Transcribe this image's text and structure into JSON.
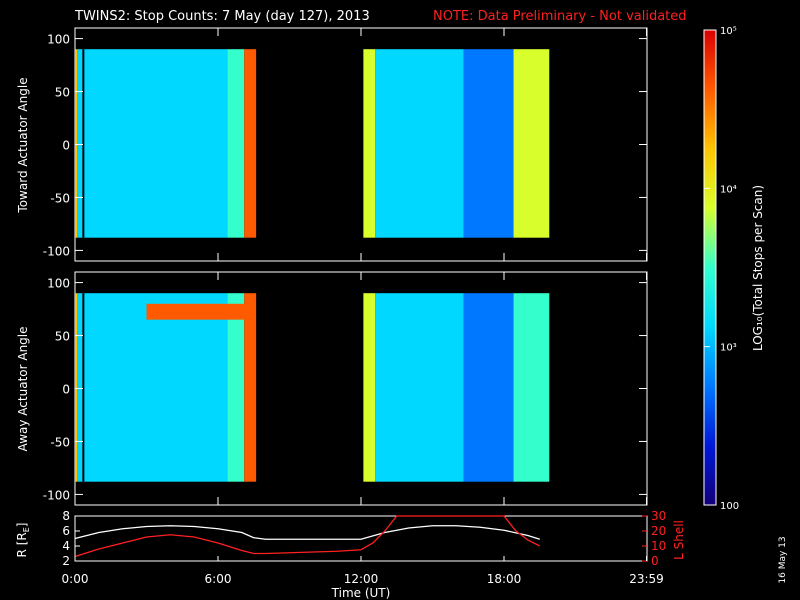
{
  "header": {
    "title": "TWINS2: Stop Counts:  7 May (day 127), 2013",
    "note": "NOTE: Data Preliminary - Not validated"
  },
  "colors": {
    "background": "#000000",
    "axis": "#ffffff",
    "note": "#ff2020",
    "r_line": "#ffffff",
    "l_line": "#ff2020"
  },
  "colorbar": {
    "label": "LOG₁₀(Total Stops per Scan)",
    "tick_labels": [
      "10⁵",
      "10⁴",
      "10³",
      "100"
    ],
    "tick_values": [
      100000,
      10000,
      1000,
      100
    ],
    "scale": "log",
    "range": [
      100,
      100000
    ],
    "colormap": [
      "#12007a",
      "#0018d8",
      "#0078ff",
      "#00d8ff",
      "#34ffcc",
      "#d8ff2c",
      "#ffc400",
      "#ff5a00",
      "#d80000"
    ]
  },
  "xaxis": {
    "label": "Time (UT)",
    "tick_labels": [
      "0:00",
      "6:00",
      "12:00",
      "18:00",
      "23:59"
    ],
    "tick_hours": [
      0,
      6,
      12,
      18,
      23.98
    ],
    "range_hours": [
      0,
      24
    ]
  },
  "footer": {
    "stamp": "16 May 13"
  },
  "chart_data": [
    {
      "type": "heatmap",
      "ylabel": "Toward Actuator Angle",
      "yticks": [
        100,
        50,
        0,
        -50,
        -100
      ],
      "ylim": [
        -110,
        110
      ],
      "xlim": [
        0,
        24
      ],
      "data_y_range": [
        -88,
        90
      ],
      "coverage_hours": [
        [
          0,
          7.6
        ],
        [
          12.1,
          19.9
        ]
      ],
      "band_colors": [
        "#ff8800",
        "#2050ff",
        "#20c8ff",
        "#30a0ff",
        "#ffd000",
        "#ff3000"
      ],
      "approx_log_counts_by_segment": [
        {
          "hours": [
            0,
            0.1
          ],
          "log10": 4.2
        },
        {
          "hours": [
            0.1,
            6.4
          ],
          "log10": 3.1
        },
        {
          "hours": [
            6.4,
            7.1
          ],
          "log10": 3.6
        },
        {
          "hours": [
            7.1,
            7.6
          ],
          "log10": 4.7
        },
        {
          "hours": [
            12.1,
            12.6
          ],
          "log10": 4.0
        },
        {
          "hours": [
            12.6,
            16.3
          ],
          "log10": 3.3
        },
        {
          "hours": [
            16.3,
            18.4
          ],
          "log10": 2.9
        },
        {
          "hours": [
            18.4,
            19.9
          ],
          "log10": 3.7
        }
      ]
    },
    {
      "type": "heatmap",
      "ylabel": "Away Actuator Angle",
      "yticks": [
        100,
        50,
        0,
        -50,
        -100
      ],
      "ylim": [
        -110,
        110
      ],
      "xlim": [
        0,
        24
      ],
      "data_y_range": [
        -88,
        90
      ],
      "coverage_hours": [
        [
          0,
          7.6
        ],
        [
          12.1,
          19.9
        ]
      ],
      "high_count_band": {
        "hours": [
          3.0,
          7.4
        ],
        "angle_range": [
          65,
          80
        ],
        "log10": 4.5
      },
      "approx_log_counts_by_segment": [
        {
          "hours": [
            0,
            0.1
          ],
          "log10": 4.2
        },
        {
          "hours": [
            0.1,
            6.4
          ],
          "log10": 3.0
        },
        {
          "hours": [
            6.4,
            7.1
          ],
          "log10": 3.5
        },
        {
          "hours": [
            7.1,
            7.6
          ],
          "log10": 4.6
        },
        {
          "hours": [
            12.1,
            12.6
          ],
          "log10": 4.0
        },
        {
          "hours": [
            12.6,
            16.3
          ],
          "log10": 3.2
        },
        {
          "hours": [
            16.3,
            18.4
          ],
          "log10": 2.8
        },
        {
          "hours": [
            18.4,
            19.9
          ],
          "log10": 3.6
        }
      ]
    },
    {
      "type": "line",
      "ylabel": "R [R",
      "ylabel_sub": "E",
      "ylabel_close": "]",
      "y2label": "L Shell",
      "yticks_left": [
        8,
        6,
        4,
        2
      ],
      "yticks_right": [
        30,
        20,
        10,
        0
      ],
      "ylim_left": [
        2,
        8
      ],
      "ylim_right": [
        0,
        30
      ],
      "series": [
        {
          "axis": "left",
          "x": [
            0,
            1,
            2,
            3,
            4,
            5,
            6,
            7,
            7.5,
            8,
            9,
            10,
            11,
            12,
            13,
            14,
            15,
            16,
            17,
            18,
            19,
            19.5
          ],
          "y": [
            5.0,
            5.8,
            6.3,
            6.6,
            6.7,
            6.6,
            6.3,
            5.8,
            5.1,
            4.9,
            4.9,
            4.9,
            4.9,
            4.9,
            5.8,
            6.4,
            6.7,
            6.7,
            6.5,
            6.1,
            5.4,
            4.9
          ]
        },
        {
          "axis": "right",
          "x": [
            0,
            1,
            2,
            3,
            4,
            5,
            6,
            7,
            7.5,
            8,
            9,
            10,
            11,
            12,
            12.5,
            13,
            13.5,
            18,
            18.5,
            19,
            19.5
          ],
          "y": [
            3,
            8,
            12,
            16,
            17.5,
            16,
            12,
            7,
            5,
            5,
            5.5,
            6,
            6.5,
            7.5,
            12,
            20,
            30,
            30,
            20,
            14,
            10
          ]
        }
      ]
    }
  ]
}
